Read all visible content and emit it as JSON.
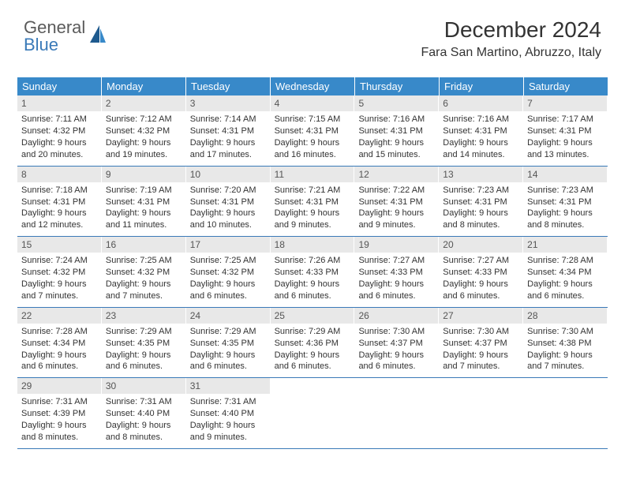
{
  "logo": {
    "line1": "General",
    "line2": "Blue"
  },
  "colors": {
    "header_bg": "#3889c9",
    "header_text": "#ffffff",
    "daynum_bg": "#e8e8e8",
    "text": "#333333",
    "logo_gray": "#5a5a5a",
    "logo_blue": "#3a7ab8",
    "rule": "#3a7ab8"
  },
  "title": "December 2024",
  "location": "Fara San Martino, Abruzzo, Italy",
  "weekdays": [
    "Sunday",
    "Monday",
    "Tuesday",
    "Wednesday",
    "Thursday",
    "Friday",
    "Saturday"
  ],
  "weeks": [
    [
      {
        "num": "1",
        "sunrise": "Sunrise: 7:11 AM",
        "sunset": "Sunset: 4:32 PM",
        "day1": "Daylight: 9 hours",
        "day2": "and 20 minutes."
      },
      {
        "num": "2",
        "sunrise": "Sunrise: 7:12 AM",
        "sunset": "Sunset: 4:32 PM",
        "day1": "Daylight: 9 hours",
        "day2": "and 19 minutes."
      },
      {
        "num": "3",
        "sunrise": "Sunrise: 7:14 AM",
        "sunset": "Sunset: 4:31 PM",
        "day1": "Daylight: 9 hours",
        "day2": "and 17 minutes."
      },
      {
        "num": "4",
        "sunrise": "Sunrise: 7:15 AM",
        "sunset": "Sunset: 4:31 PM",
        "day1": "Daylight: 9 hours",
        "day2": "and 16 minutes."
      },
      {
        "num": "5",
        "sunrise": "Sunrise: 7:16 AM",
        "sunset": "Sunset: 4:31 PM",
        "day1": "Daylight: 9 hours",
        "day2": "and 15 minutes."
      },
      {
        "num": "6",
        "sunrise": "Sunrise: 7:16 AM",
        "sunset": "Sunset: 4:31 PM",
        "day1": "Daylight: 9 hours",
        "day2": "and 14 minutes."
      },
      {
        "num": "7",
        "sunrise": "Sunrise: 7:17 AM",
        "sunset": "Sunset: 4:31 PM",
        "day1": "Daylight: 9 hours",
        "day2": "and 13 minutes."
      }
    ],
    [
      {
        "num": "8",
        "sunrise": "Sunrise: 7:18 AM",
        "sunset": "Sunset: 4:31 PM",
        "day1": "Daylight: 9 hours",
        "day2": "and 12 minutes."
      },
      {
        "num": "9",
        "sunrise": "Sunrise: 7:19 AM",
        "sunset": "Sunset: 4:31 PM",
        "day1": "Daylight: 9 hours",
        "day2": "and 11 minutes."
      },
      {
        "num": "10",
        "sunrise": "Sunrise: 7:20 AM",
        "sunset": "Sunset: 4:31 PM",
        "day1": "Daylight: 9 hours",
        "day2": "and 10 minutes."
      },
      {
        "num": "11",
        "sunrise": "Sunrise: 7:21 AM",
        "sunset": "Sunset: 4:31 PM",
        "day1": "Daylight: 9 hours",
        "day2": "and 9 minutes."
      },
      {
        "num": "12",
        "sunrise": "Sunrise: 7:22 AM",
        "sunset": "Sunset: 4:31 PM",
        "day1": "Daylight: 9 hours",
        "day2": "and 9 minutes."
      },
      {
        "num": "13",
        "sunrise": "Sunrise: 7:23 AM",
        "sunset": "Sunset: 4:31 PM",
        "day1": "Daylight: 9 hours",
        "day2": "and 8 minutes."
      },
      {
        "num": "14",
        "sunrise": "Sunrise: 7:23 AM",
        "sunset": "Sunset: 4:31 PM",
        "day1": "Daylight: 9 hours",
        "day2": "and 8 minutes."
      }
    ],
    [
      {
        "num": "15",
        "sunrise": "Sunrise: 7:24 AM",
        "sunset": "Sunset: 4:32 PM",
        "day1": "Daylight: 9 hours",
        "day2": "and 7 minutes."
      },
      {
        "num": "16",
        "sunrise": "Sunrise: 7:25 AM",
        "sunset": "Sunset: 4:32 PM",
        "day1": "Daylight: 9 hours",
        "day2": "and 7 minutes."
      },
      {
        "num": "17",
        "sunrise": "Sunrise: 7:25 AM",
        "sunset": "Sunset: 4:32 PM",
        "day1": "Daylight: 9 hours",
        "day2": "and 6 minutes."
      },
      {
        "num": "18",
        "sunrise": "Sunrise: 7:26 AM",
        "sunset": "Sunset: 4:33 PM",
        "day1": "Daylight: 9 hours",
        "day2": "and 6 minutes."
      },
      {
        "num": "19",
        "sunrise": "Sunrise: 7:27 AM",
        "sunset": "Sunset: 4:33 PM",
        "day1": "Daylight: 9 hours",
        "day2": "and 6 minutes."
      },
      {
        "num": "20",
        "sunrise": "Sunrise: 7:27 AM",
        "sunset": "Sunset: 4:33 PM",
        "day1": "Daylight: 9 hours",
        "day2": "and 6 minutes."
      },
      {
        "num": "21",
        "sunrise": "Sunrise: 7:28 AM",
        "sunset": "Sunset: 4:34 PM",
        "day1": "Daylight: 9 hours",
        "day2": "and 6 minutes."
      }
    ],
    [
      {
        "num": "22",
        "sunrise": "Sunrise: 7:28 AM",
        "sunset": "Sunset: 4:34 PM",
        "day1": "Daylight: 9 hours",
        "day2": "and 6 minutes."
      },
      {
        "num": "23",
        "sunrise": "Sunrise: 7:29 AM",
        "sunset": "Sunset: 4:35 PM",
        "day1": "Daylight: 9 hours",
        "day2": "and 6 minutes."
      },
      {
        "num": "24",
        "sunrise": "Sunrise: 7:29 AM",
        "sunset": "Sunset: 4:35 PM",
        "day1": "Daylight: 9 hours",
        "day2": "and 6 minutes."
      },
      {
        "num": "25",
        "sunrise": "Sunrise: 7:29 AM",
        "sunset": "Sunset: 4:36 PM",
        "day1": "Daylight: 9 hours",
        "day2": "and 6 minutes."
      },
      {
        "num": "26",
        "sunrise": "Sunrise: 7:30 AM",
        "sunset": "Sunset: 4:37 PM",
        "day1": "Daylight: 9 hours",
        "day2": "and 6 minutes."
      },
      {
        "num": "27",
        "sunrise": "Sunrise: 7:30 AM",
        "sunset": "Sunset: 4:37 PM",
        "day1": "Daylight: 9 hours",
        "day2": "and 7 minutes."
      },
      {
        "num": "28",
        "sunrise": "Sunrise: 7:30 AM",
        "sunset": "Sunset: 4:38 PM",
        "day1": "Daylight: 9 hours",
        "day2": "and 7 minutes."
      }
    ],
    [
      {
        "num": "29",
        "sunrise": "Sunrise: 7:31 AM",
        "sunset": "Sunset: 4:39 PM",
        "day1": "Daylight: 9 hours",
        "day2": "and 8 minutes."
      },
      {
        "num": "30",
        "sunrise": "Sunrise: 7:31 AM",
        "sunset": "Sunset: 4:40 PM",
        "day1": "Daylight: 9 hours",
        "day2": "and 8 minutes."
      },
      {
        "num": "31",
        "sunrise": "Sunrise: 7:31 AM",
        "sunset": "Sunset: 4:40 PM",
        "day1": "Daylight: 9 hours",
        "day2": "and 9 minutes."
      },
      null,
      null,
      null,
      null
    ]
  ]
}
